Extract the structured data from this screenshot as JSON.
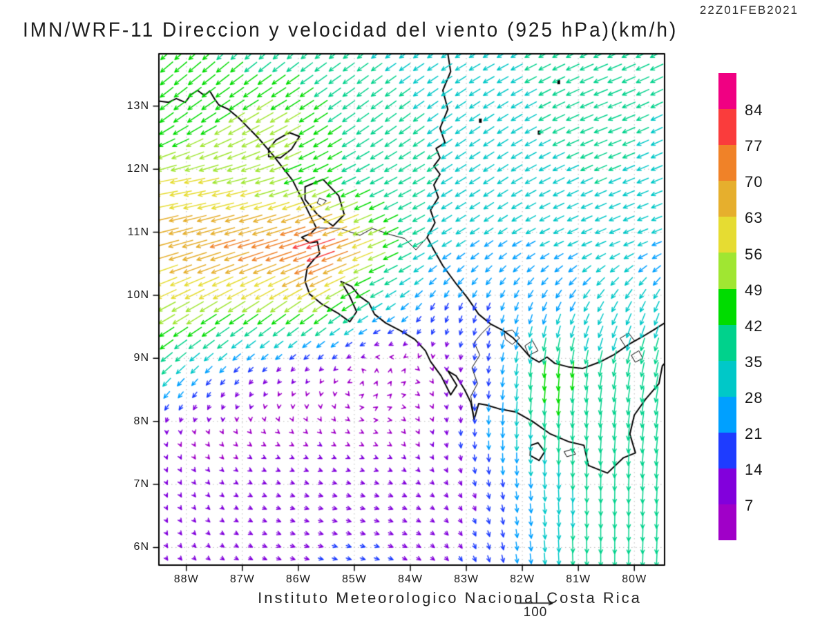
{
  "header": {
    "timestamp": "22Z01FEB2021",
    "title": "IMN/WRF-11 Direccion y velocidad del viento (925 hPa)(km/h)"
  },
  "footer": {
    "credit": "Instituto Meteorologico Nacional Costa Rica",
    "reference_label": "100"
  },
  "chart_data": {
    "type": "vector_field",
    "title": "IMN/WRF-11 Direccion y velocidad del viento (925 hPa)(km/h)",
    "timestamp": "22Z01FEB2021",
    "units": "km/h",
    "lon_range": [
      -88.49,
      -79.46
    ],
    "lat_range": [
      5.72,
      13.83
    ],
    "lon_ticks": {
      "values": [
        -88,
        -87,
        -86,
        -85,
        -84,
        -83,
        -82,
        -81,
        -80
      ],
      "labels": [
        "88W",
        "87W",
        "86W",
        "85W",
        "84W",
        "83W",
        "82W",
        "81W",
        "80W"
      ]
    },
    "lat_ticks": {
      "values": [
        13,
        12,
        11,
        10,
        9,
        8,
        7,
        6
      ],
      "labels": [
        "13N",
        "12N",
        "11N",
        "10N",
        "9N",
        "8N",
        "7N",
        "6N"
      ]
    },
    "grid_lines": {
      "show": true,
      "style": "dotted",
      "color": "#b9b9b9"
    },
    "speed_levels": [
      7,
      14,
      21,
      28,
      35,
      42,
      49,
      56,
      63,
      70,
      77,
      84
    ],
    "speed_colors": [
      "#A000C8",
      "#8200DC",
      "#1E3CFF",
      "#00A0FF",
      "#00C8C8",
      "#00D28C",
      "#00DC00",
      "#A0E632",
      "#E6DC32",
      "#E6AF2D",
      "#F08228",
      "#FA3C3C",
      "#F00082"
    ],
    "reference_arrow": {
      "value": 100,
      "label": "100"
    },
    "wind_grid": {
      "lons": [
        -88.5,
        -87.5,
        -86.5,
        -85.5,
        -84.5,
        -83.5,
        -82.5,
        -81.5,
        -80.5,
        -79.5
      ],
      "lats": [
        13.75,
        12.75,
        11.75,
        10.75,
        9.75,
        8.75,
        7.75,
        6.75,
        5.75
      ],
      "u": [
        [
          -32,
          -32,
          -30,
          -30,
          -28,
          -28,
          -30,
          -32,
          -38,
          -34
        ],
        [
          -36,
          -40,
          -48,
          -36,
          -30,
          -28,
          -28,
          -32,
          -36,
          -30
        ],
        [
          -58,
          -56,
          -50,
          -40,
          -35,
          -30,
          -28,
          -30,
          -32,
          -30
        ],
        [
          -65,
          -68,
          -72,
          -80,
          -45,
          -25,
          -22,
          -25,
          -28,
          -25
        ],
        [
          -46,
          -45,
          -42,
          -40,
          -26,
          -8,
          -6,
          -10,
          -15,
          -12
        ],
        [
          -26,
          -15,
          -8,
          -4,
          3,
          2,
          -3,
          -4,
          -6,
          -8
        ],
        [
          2,
          4,
          5,
          5,
          4,
          2,
          0,
          -2,
          -3,
          -5
        ],
        [
          3,
          6,
          10,
          12,
          12,
          8,
          4,
          2,
          0,
          -2
        ],
        [
          5,
          8,
          12,
          14,
          14,
          10,
          5,
          2,
          0,
          -2
        ]
      ],
      "v": [
        [
          -28,
          -28,
          -25,
          -22,
          -20,
          -18,
          -16,
          -16,
          -16,
          -16
        ],
        [
          -26,
          -25,
          -26,
          -24,
          -22,
          -20,
          -18,
          -16,
          -14,
          -15
        ],
        [
          -10,
          -12,
          -15,
          -18,
          -18,
          -18,
          -18,
          -15,
          -14,
          -12
        ],
        [
          -18,
          -20,
          -22,
          -27,
          -20,
          -15,
          -15,
          -12,
          -12,
          -10
        ],
        [
          -25,
          -28,
          -30,
          -28,
          -16,
          -18,
          -20,
          -24,
          -28,
          -30
        ],
        [
          -25,
          -16,
          -8,
          -5,
          8,
          -4,
          -20,
          -48,
          -36,
          -40
        ],
        [
          -7,
          -5,
          -3,
          -4,
          -2,
          -8,
          -26,
          -38,
          -40,
          -42
        ],
        [
          -8,
          -5,
          -4,
          -3,
          -4,
          -6,
          -15,
          -30,
          -40,
          -40
        ],
        [
          -8,
          -6,
          -5,
          -4,
          -5,
          -8,
          -18,
          -32,
          -42,
          -42
        ]
      ]
    },
    "coastlines": [
      {
        "name": "pacific-coast",
        "closed": false,
        "w": 2,
        "pts": [
          [
            -88.49,
            13.08
          ],
          [
            -88.32,
            13.06
          ],
          [
            -88.18,
            13.12
          ],
          [
            -88.02,
            13.06
          ],
          [
            -87.92,
            13.18
          ],
          [
            -87.8,
            13.25
          ],
          [
            -87.68,
            13.17
          ],
          [
            -87.58,
            13.24
          ],
          [
            -87.5,
            13.12
          ],
          [
            -87.42,
            13.02
          ],
          [
            -87.25,
            12.95
          ],
          [
            -87.05,
            12.8
          ],
          [
            -86.72,
            12.5
          ],
          [
            -86.45,
            12.22
          ],
          [
            -86.1,
            11.82
          ],
          [
            -85.92,
            11.5
          ],
          [
            -85.68,
            11.07
          ],
          [
            -85.78,
            10.98
          ],
          [
            -85.94,
            10.92
          ],
          [
            -85.8,
            10.83
          ],
          [
            -85.66,
            10.85
          ],
          [
            -85.62,
            10.66
          ],
          [
            -85.72,
            10.57
          ],
          [
            -85.84,
            10.44
          ],
          [
            -85.88,
            10.22
          ],
          [
            -85.8,
            10.02
          ],
          [
            -85.58,
            9.86
          ],
          [
            -85.3,
            9.72
          ],
          [
            -85.08,
            9.58
          ],
          [
            -84.96,
            9.74
          ],
          [
            -85.08,
            9.98
          ],
          [
            -85.24,
            10.22
          ],
          [
            -85.05,
            10.14
          ],
          [
            -84.9,
            9.98
          ],
          [
            -84.74,
            9.88
          ],
          [
            -84.64,
            9.7
          ],
          [
            -84.44,
            9.56
          ],
          [
            -84.18,
            9.44
          ],
          [
            -83.92,
            9.3
          ],
          [
            -83.73,
            9.12
          ],
          [
            -83.64,
            8.95
          ],
          [
            -83.45,
            8.72
          ],
          [
            -83.28,
            8.42
          ],
          [
            -83.17,
            8.57
          ],
          [
            -83.33,
            8.8
          ],
          [
            -83.18,
            8.72
          ],
          [
            -83.03,
            8.5
          ],
          [
            -82.92,
            8.3
          ],
          [
            -82.86,
            8.03
          ],
          [
            -82.78,
            8.28
          ],
          [
            -82.64,
            8.26
          ],
          [
            -82.42,
            8.2
          ],
          [
            -82.12,
            8.15
          ],
          [
            -81.82,
            8.0
          ],
          [
            -81.5,
            7.8
          ],
          [
            -81.18,
            7.68
          ],
          [
            -80.9,
            7.62
          ],
          [
            -80.82,
            7.3
          ],
          [
            -80.48,
            7.18
          ],
          [
            -80.2,
            7.42
          ],
          [
            -79.98,
            7.5
          ],
          [
            -80.08,
            7.8
          ],
          [
            -80.0,
            8.1
          ],
          [
            -79.8,
            8.35
          ],
          [
            -79.56,
            8.6
          ],
          [
            -79.5,
            8.88
          ],
          [
            -79.46,
            8.92
          ]
        ]
      },
      {
        "name": "caribbean-coast",
        "closed": false,
        "w": 2,
        "pts": [
          [
            -83.33,
            13.83
          ],
          [
            -83.28,
            13.55
          ],
          [
            -83.42,
            13.25
          ],
          [
            -83.33,
            12.95
          ],
          [
            -83.47,
            12.65
          ],
          [
            -83.38,
            12.42
          ],
          [
            -83.54,
            12.33
          ],
          [
            -83.47,
            12.18
          ],
          [
            -83.58,
            12.05
          ],
          [
            -83.47,
            11.92
          ],
          [
            -83.58,
            11.75
          ],
          [
            -83.5,
            11.55
          ],
          [
            -83.64,
            11.35
          ],
          [
            -83.56,
            11.15
          ],
          [
            -83.7,
            10.92
          ],
          [
            -83.58,
            10.72
          ],
          [
            -83.42,
            10.47
          ],
          [
            -83.18,
            10.18
          ],
          [
            -82.98,
            9.96
          ],
          [
            -82.78,
            9.7
          ],
          [
            -82.56,
            9.54
          ],
          [
            -82.34,
            9.44
          ],
          [
            -82.16,
            9.32
          ],
          [
            -82.0,
            9.16
          ],
          [
            -81.86,
            9.02
          ],
          [
            -81.7,
            8.94
          ],
          [
            -81.56,
            9.02
          ],
          [
            -81.42,
            8.92
          ],
          [
            -81.16,
            8.86
          ],
          [
            -80.92,
            8.84
          ],
          [
            -80.62,
            8.94
          ],
          [
            -80.36,
            9.06
          ],
          [
            -80.1,
            9.22
          ],
          [
            -79.86,
            9.34
          ],
          [
            -79.64,
            9.46
          ],
          [
            -79.46,
            9.56
          ]
        ]
      },
      {
        "name": "border-nicaragua-costarica",
        "closed": false,
        "w": 1,
        "pts": [
          [
            -85.68,
            11.07
          ],
          [
            -85.25,
            11.06
          ],
          [
            -84.9,
            10.95
          ],
          [
            -84.68,
            11.06
          ],
          [
            -84.35,
            10.96
          ],
          [
            -84.1,
            10.9
          ],
          [
            -83.9,
            10.72
          ],
          [
            -83.7,
            10.92
          ]
        ]
      },
      {
        "name": "border-costarica-panama",
        "closed": false,
        "w": 1,
        "pts": [
          [
            -82.56,
            9.54
          ],
          [
            -82.72,
            9.4
          ],
          [
            -82.86,
            9.25
          ],
          [
            -82.76,
            9.05
          ],
          [
            -82.9,
            8.85
          ],
          [
            -82.8,
            8.6
          ],
          [
            -82.92,
            8.4
          ],
          [
            -82.86,
            8.03
          ]
        ]
      },
      {
        "name": "lake-managua",
        "closed": true,
        "w": 2,
        "pts": [
          [
            -86.53,
            12.2
          ],
          [
            -86.32,
            12.18
          ],
          [
            -86.12,
            12.32
          ],
          [
            -85.98,
            12.52
          ],
          [
            -86.16,
            12.58
          ],
          [
            -86.4,
            12.46
          ],
          [
            -86.53,
            12.32
          ]
        ]
      },
      {
        "name": "lake-nicaragua",
        "closed": true,
        "w": 2,
        "pts": [
          [
            -85.88,
            11.72
          ],
          [
            -85.56,
            11.84
          ],
          [
            -85.28,
            11.58
          ],
          [
            -85.18,
            11.28
          ],
          [
            -85.38,
            11.1
          ],
          [
            -85.66,
            11.28
          ],
          [
            -85.88,
            11.52
          ]
        ]
      },
      {
        "name": "isla-ometepe",
        "closed": true,
        "w": 1,
        "pts": [
          [
            -85.62,
            11.54
          ],
          [
            -85.5,
            11.5
          ],
          [
            -85.58,
            11.42
          ],
          [
            -85.66,
            11.46
          ]
        ]
      },
      {
        "name": "isla-coiba",
        "closed": true,
        "w": 2,
        "pts": [
          [
            -81.85,
            7.62
          ],
          [
            -81.72,
            7.66
          ],
          [
            -81.6,
            7.52
          ],
          [
            -81.7,
            7.38
          ],
          [
            -81.86,
            7.46
          ]
        ]
      },
      {
        "name": "isla-cebaco",
        "closed": true,
        "w": 1,
        "pts": [
          [
            -81.25,
            7.52
          ],
          [
            -81.1,
            7.56
          ],
          [
            -81.05,
            7.48
          ],
          [
            -81.2,
            7.44
          ]
        ]
      },
      {
        "name": "bocas-del-toro-islands",
        "closed": true,
        "w": 1,
        "pts": [
          [
            -82.32,
            9.42
          ],
          [
            -82.18,
            9.45
          ],
          [
            -82.05,
            9.32
          ],
          [
            -82.18,
            9.22
          ],
          [
            -82.3,
            9.3
          ]
        ]
      },
      {
        "name": "peninsula-valiente-islets",
        "closed": true,
        "w": 1,
        "pts": [
          [
            -81.95,
            9.2
          ],
          [
            -81.82,
            9.28
          ],
          [
            -81.72,
            9.12
          ],
          [
            -81.88,
            9.05
          ]
        ]
      },
      {
        "name": "escudo-islets-west",
        "closed": true,
        "w": 1,
        "pts": [
          [
            -80.25,
            9.32
          ],
          [
            -80.1,
            9.4
          ],
          [
            -80.0,
            9.28
          ],
          [
            -80.15,
            9.18
          ]
        ]
      },
      {
        "name": "escudo-islets-east",
        "closed": true,
        "w": 1,
        "pts": [
          [
            -80.05,
            9.05
          ],
          [
            -79.92,
            9.12
          ],
          [
            -79.85,
            9.0
          ],
          [
            -79.98,
            8.94
          ]
        ]
      },
      {
        "name": "isla-providencia",
        "dot": true,
        "pts": [
          [
            -81.35,
            13.38
          ]
        ]
      },
      {
        "name": "isla-san-andres",
        "dot": true,
        "pts": [
          [
            -81.7,
            12.58
          ]
        ]
      },
      {
        "name": "corn-island",
        "dot": true,
        "pts": [
          [
            -82.75,
            12.77
          ]
        ]
      }
    ]
  }
}
